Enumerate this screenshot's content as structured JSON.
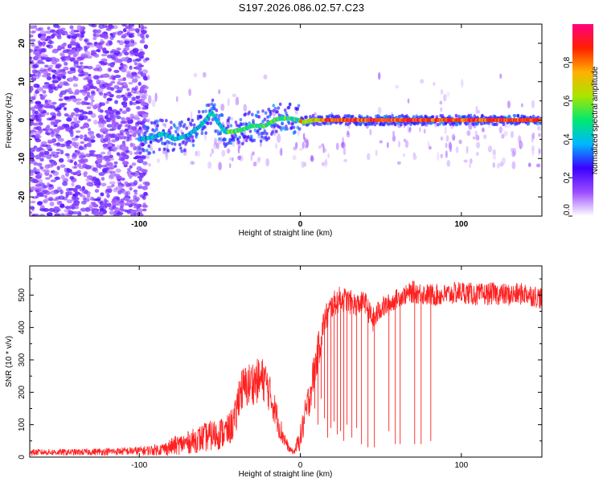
{
  "title": "S197.2026.086.02.57.C23",
  "chart_data": [
    {
      "type": "heatmap",
      "xlabel": "Height of straight line (km)",
      "ylabel": "Frequency (Hz)",
      "xlim": [
        -168,
        150
      ],
      "ylim": [
        -25,
        25
      ],
      "xticks": [
        -100,
        0,
        100
      ],
      "yticks": [
        -20,
        -10,
        0,
        10,
        20
      ],
      "colorbar": {
        "label": "Normalized spectral amplitude",
        "range": [
          0,
          1
        ],
        "ticks": [
          "0.0",
          "0.2",
          "0.4",
          "0.6",
          "0.8"
        ],
        "colors": [
          "#ffffff",
          "#9b4dff",
          "#3b00ff",
          "#00b7ff",
          "#00e870",
          "#a8e600",
          "#ffb000",
          "#ff2000",
          "#ff0080"
        ]
      },
      "ridge_path": [
        {
          "x": -100,
          "y": -5
        },
        {
          "x": -92,
          "y": -4.5
        },
        {
          "x": -85,
          "y": -3.5
        },
        {
          "x": -78,
          "y": -5
        },
        {
          "x": -70,
          "y": -4
        },
        {
          "x": -62,
          "y": -1.5
        },
        {
          "x": -55,
          "y": 2
        },
        {
          "x": -52,
          "y": 0
        },
        {
          "x": -47,
          "y": -3
        },
        {
          "x": -42,
          "y": -3
        },
        {
          "x": -36,
          "y": -2.5
        },
        {
          "x": -30,
          "y": -1.5
        },
        {
          "x": -22,
          "y": -1.5
        },
        {
          "x": -18,
          "y": -0.5
        },
        {
          "x": -14,
          "y": 0.3
        },
        {
          "x": -8,
          "y": 0.5
        },
        {
          "x": -3,
          "y": 0.2
        },
        {
          "x": 2,
          "y": -0.5
        },
        {
          "x": 8,
          "y": 0
        },
        {
          "x": 20,
          "y": 0
        },
        {
          "x": 60,
          "y": 0
        },
        {
          "x": 100,
          "y": 0
        },
        {
          "x": 150,
          "y": 0
        }
      ]
    },
    {
      "type": "line",
      "xlabel": "Height of straight line (km)",
      "ylabel": "SNR (10 * v/v)",
      "xlim": [
        -168,
        150
      ],
      "ylim": [
        0,
        590
      ],
      "xticks": [
        -100,
        0,
        100
      ],
      "yticks": [
        0,
        100,
        200,
        300,
        400,
        500
      ],
      "color": "#ff2020",
      "series": [
        {
          "name": "SNR",
          "x": [
            -168,
            -140,
            -110,
            -95,
            -85,
            -78,
            -70,
            -60,
            -52,
            -45,
            -40,
            -38,
            -30,
            -22,
            -16,
            -12,
            -7,
            -4,
            0,
            5,
            10,
            15,
            20,
            25,
            30,
            35,
            40,
            45,
            50,
            55,
            60,
            65,
            70,
            80,
            90,
            100,
            110,
            120,
            130,
            140,
            150
          ],
          "y": [
            15,
            15,
            18,
            20,
            25,
            35,
            45,
            60,
            70,
            80,
            120,
            200,
            230,
            240,
            150,
            80,
            25,
            15,
            60,
            170,
            300,
            420,
            470,
            490,
            480,
            470,
            480,
            420,
            460,
            470,
            490,
            500,
            510,
            500,
            500,
            510,
            500,
            505,
            500,
            505,
            490
          ],
          "amp": [
            10,
            10,
            12,
            15,
            20,
            30,
            35,
            45,
            50,
            50,
            60,
            70,
            70,
            70,
            50,
            40,
            10,
            8,
            40,
            60,
            60,
            50,
            40,
            40,
            40,
            35,
            35,
            40,
            35,
            35,
            30,
            30,
            35,
            35,
            35,
            35,
            35,
            35,
            35,
            35,
            35
          ]
        }
      ],
      "dropouts": [
        {
          "x": 9,
          "y": 150
        },
        {
          "x": 11,
          "y": 100
        },
        {
          "x": 13,
          "y": 180
        },
        {
          "x": 15,
          "y": 120
        },
        {
          "x": 17,
          "y": 60
        },
        {
          "x": 19,
          "y": 90
        },
        {
          "x": 21,
          "y": 110
        },
        {
          "x": 23,
          "y": 70
        },
        {
          "x": 25,
          "y": 80
        },
        {
          "x": 27,
          "y": 50
        },
        {
          "x": 29,
          "y": 100
        },
        {
          "x": 32,
          "y": 60
        },
        {
          "x": 35,
          "y": 90
        },
        {
          "x": 38,
          "y": 40
        },
        {
          "x": 42,
          "y": 30
        },
        {
          "x": 46,
          "y": 30
        },
        {
          "x": 55,
          "y": 80
        },
        {
          "x": 59,
          "y": 40
        },
        {
          "x": 62,
          "y": 40
        },
        {
          "x": 71,
          "y": 40
        },
        {
          "x": 75,
          "y": 40
        },
        {
          "x": 81,
          "y": 50
        }
      ]
    }
  ]
}
